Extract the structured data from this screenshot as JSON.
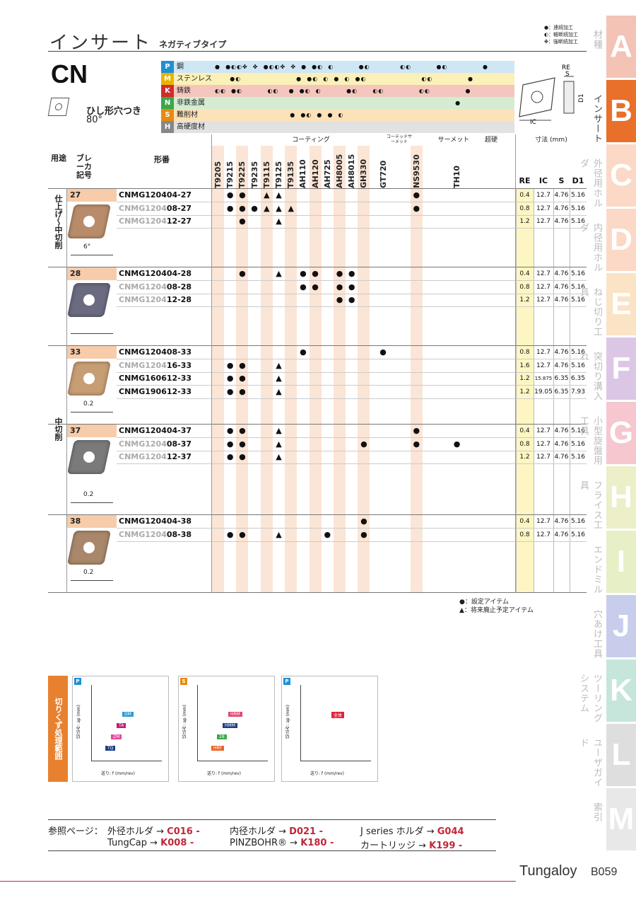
{
  "header": {
    "title": "インサート",
    "subtitle": "ネガティブタイプ"
  },
  "top_legend": [
    "●：連続加工",
    "◐：軽断続加工",
    "✤：強断続加工"
  ],
  "insert": {
    "code": "CN",
    "shape": "ひし形穴つき",
    "angle": "80°"
  },
  "materials": [
    {
      "letter": "P",
      "name": "鋼",
      "color": "#1f8fd6",
      "bg": "#cfe6f5",
      "dots": "●  ●◐◐✤  ✤  ●◐◐✤  ✤  ●  ●◐  ◐          ●◐            ◐◐          ●◐              ●"
    },
    {
      "letter": "M",
      "name": "ステンレス",
      "color": "#e8b400",
      "bg": "#fbf0b8",
      "dots": "      ●◐                      ●  ●◐  ◐  ●  ◐  ●◐                      ◐◐              ●"
    },
    {
      "letter": "K",
      "name": "鋳鉄",
      "color": "#d22b2b",
      "bg": "#f5c6bd",
      "dots": "◐◐  ●◐          ◐◐    ●  ●◐  ◐          ●◐      ◐◐              ◐◐              ●"
    },
    {
      "letter": "N",
      "name": "非鉄金属",
      "color": "#3aa84a",
      "bg": "#d3ecd2",
      "dots": "                                                                                                ●"
    },
    {
      "letter": "S",
      "name": "難削材",
      "color": "#e88a12",
      "bg": "#fde1b8",
      "dots": "                              ●  ●◐  ●  ●  ◐"
    },
    {
      "letter": "H",
      "name": "高硬度材",
      "color": "#888888",
      "bg": "#e2e2e2",
      "dots": ""
    }
  ],
  "column_groups": {
    "coating": "コーティング",
    "cermet_coated": "コーテッドサーメット",
    "cermet": "サーメット",
    "carbide": "超硬",
    "dims": "寸法 (mm)"
  },
  "row_header": {
    "use": "用途",
    "breaker": "ブレーカ記号",
    "model": "形番"
  },
  "grades": [
    "T9205",
    "T9215",
    "T9225",
    "T9235",
    "T9115",
    "T9125",
    "T9135",
    "AH110",
    "AH120",
    "AH725",
    "AH8005",
    "AH8015",
    "GH330",
    "GT720",
    "NS9530",
    "TH10"
  ],
  "dim_headers": [
    "RE",
    "IC",
    "S",
    "D1"
  ],
  "uses": [
    "仕上げ～中切削",
    "中切削"
  ],
  "blocks": [
    {
      "chip": "27",
      "rows": [
        {
          "pre": "",
          "model": "CNMG120404-27",
          "syms": {
            "T9215": "●",
            "T9225": "●",
            "T9115": "▲",
            "T9125": "▲",
            "NS9530": "●"
          },
          "dims": [
            "0.4",
            "12.7",
            "4.76",
            "5.16"
          ]
        },
        {
          "pre": "CNMG1204",
          "model": "08-27",
          "syms": {
            "T9215": "●",
            "T9225": "●",
            "T9235": "●",
            "T9115": "▲",
            "T9125": "▲",
            "T9135": "▲",
            "NS9530": "●"
          },
          "dims": [
            "0.8",
            "12.7",
            "4.76",
            "5.16"
          ]
        },
        {
          "pre": "CNMG1204",
          "model": "12-27",
          "syms": {
            "T9225": "●",
            "T9125": "▲"
          },
          "dims": [
            "1.2",
            "12.7",
            "4.76",
            "5.16"
          ]
        }
      ],
      "angle": "6°"
    },
    {
      "chip": "28",
      "rows": [
        {
          "pre": "",
          "model": "CNMG120404-28",
          "syms": {
            "T9225": "●",
            "T9125": "▲",
            "AH110": "●",
            "AH120": "●",
            "AH8005": "●",
            "AH8015": "●"
          },
          "dims": [
            "0.4",
            "12.7",
            "4.76",
            "5.16"
          ]
        },
        {
          "pre": "CNMG1204",
          "model": "08-28",
          "syms": {
            "AH110": "●",
            "AH120": "●",
            "AH8005": "●",
            "AH8015": "●"
          },
          "dims": [
            "0.8",
            "12.7",
            "4.76",
            "5.16"
          ]
        },
        {
          "pre": "CNMG1204",
          "model": "12-28",
          "syms": {
            "AH8005": "●",
            "AH8015": "●"
          },
          "dims": [
            "1.2",
            "12.7",
            "4.76",
            "5.16"
          ]
        }
      ]
    },
    {
      "chip": "33",
      "rows": [
        {
          "pre": "",
          "model": "CNMG120408-33",
          "syms": {
            "AH110": "●",
            "GT720": "●"
          },
          "dims": [
            "0.8",
            "12.7",
            "4.76",
            "5.16"
          ]
        },
        {
          "pre": "CNMG1204",
          "model": "16-33",
          "syms": {
            "T9215": "●",
            "T9225": "●",
            "T9125": "▲"
          },
          "dims": [
            "1.6",
            "12.7",
            "4.76",
            "5.16"
          ]
        },
        {
          "pre": "",
          "model": "CNMG160612-33",
          "syms": {
            "T9215": "●",
            "T9225": "●",
            "T9125": "▲"
          },
          "dims": [
            "1.2",
            "15.875",
            "6.35",
            "6.35"
          ]
        },
        {
          "pre": "",
          "model": "CNMG190612-33",
          "syms": {
            "T9215": "●",
            "T9225": "●",
            "T9125": "▲"
          },
          "dims": [
            "1.2",
            "19.05",
            "6.35",
            "7.93"
          ]
        }
      ],
      "angle": "0.2"
    },
    {
      "chip": "37",
      "rows": [
        {
          "pre": "",
          "model": "CNMG120404-37",
          "syms": {
            "T9215": "●",
            "T9225": "●",
            "T9125": "▲",
            "NS9530": "●"
          },
          "dims": [
            "0.4",
            "12.7",
            "4.76",
            "5.16"
          ]
        },
        {
          "pre": "CNMG1204",
          "model": "08-37",
          "syms": {
            "T9215": "●",
            "T9225": "●",
            "T9125": "▲",
            "GH330": "●",
            "NS9530": "●",
            "TH10": "●"
          },
          "dims": [
            "0.8",
            "12.7",
            "4.76",
            "5.16"
          ]
        },
        {
          "pre": "CNMG1204",
          "model": "12-37",
          "syms": {
            "T9215": "●",
            "T9225": "●",
            "T9125": "▲"
          },
          "dims": [
            "1.2",
            "12.7",
            "4.76",
            "5.16"
          ]
        }
      ],
      "angle": "0.2"
    },
    {
      "chip": "38",
      "rows": [
        {
          "pre": "",
          "model": "CNMG120404-38",
          "syms": {
            "GH330": "●"
          },
          "dims": [
            "0.4",
            "12.7",
            "4.76",
            "5.16"
          ]
        },
        {
          "pre": "CNMG1204",
          "model": "08-38",
          "syms": {
            "T9215": "●",
            "T9225": "●",
            "T9125": "▲",
            "AH725": "●",
            "GH330": "●"
          },
          "dims": [
            "0.8",
            "12.7",
            "4.76",
            "5.16"
          ]
        }
      ],
      "angle": "0.2"
    }
  ],
  "bottom_legend": [
    "●：設定アイテム",
    "▲：将来廃止予定アイテム"
  ],
  "chip_range_label": "切りくず処理範囲",
  "graph_axis": {
    "x": "送り: f (mm/rev)",
    "y": "切込み: ap (mm)"
  },
  "graph_labels": [
    [
      "DM",
      "TA",
      "ZM",
      "TQ"
    ],
    [
      "HRM",
      "HMM",
      "28",
      "HRF"
    ],
    [
      "全体"
    ]
  ],
  "refs": [
    {
      "label": "参照ページ：",
      "items": [
        {
          "t": "外径ホルダ",
          "p": "C016 -"
        },
        {
          "t": "内径ホルダ",
          "p": "D021 -"
        },
        {
          "t": "J series ホルダ",
          "p": "G044"
        }
      ]
    },
    {
      "label": "",
      "items": [
        {
          "t": "TungCap",
          "p": "K008 -"
        },
        {
          "t": "PINZBOHR®",
          "p": "K180 -"
        },
        {
          "t": "カートリッジ",
          "p": "K199 -"
        }
      ]
    }
  ],
  "footer": {
    "brand": "Tungaloy",
    "page": "B059"
  },
  "side_tabs": [
    {
      "letter": "A",
      "label": "材種",
      "color": "#f3c3b6"
    },
    {
      "letter": "B",
      "label": "インサート",
      "color": "#e8702a"
    },
    {
      "letter": "C",
      "label": "外径用ホルダ",
      "color": "#fbd9c6"
    },
    {
      "letter": "D",
      "label": "内径用ホルダ",
      "color": "#fbd9c6"
    },
    {
      "letter": "E",
      "label": "ねじ切り工具",
      "color": "#fbe3c6"
    },
    {
      "letter": "F",
      "label": "突切り溝入れ",
      "color": "#dcc6e6"
    },
    {
      "letter": "G",
      "label": "小型旋盤用工具",
      "color": "#f6c7cf"
    },
    {
      "letter": "H",
      "label": "フライス工具",
      "color": "#ecefc7"
    },
    {
      "letter": "I",
      "label": "エンドミル",
      "color": "#e6efc6"
    },
    {
      "letter": "J",
      "label": "穴あけ工具",
      "color": "#c7cdeb"
    },
    {
      "letter": "K",
      "label": "ツーリングシステム",
      "color": "#c6e6dc"
    },
    {
      "letter": "L",
      "label": "ユーザガイド",
      "color": "#dedede"
    },
    {
      "letter": "M",
      "label": "索引",
      "color": "#e8e8e8"
    }
  ]
}
